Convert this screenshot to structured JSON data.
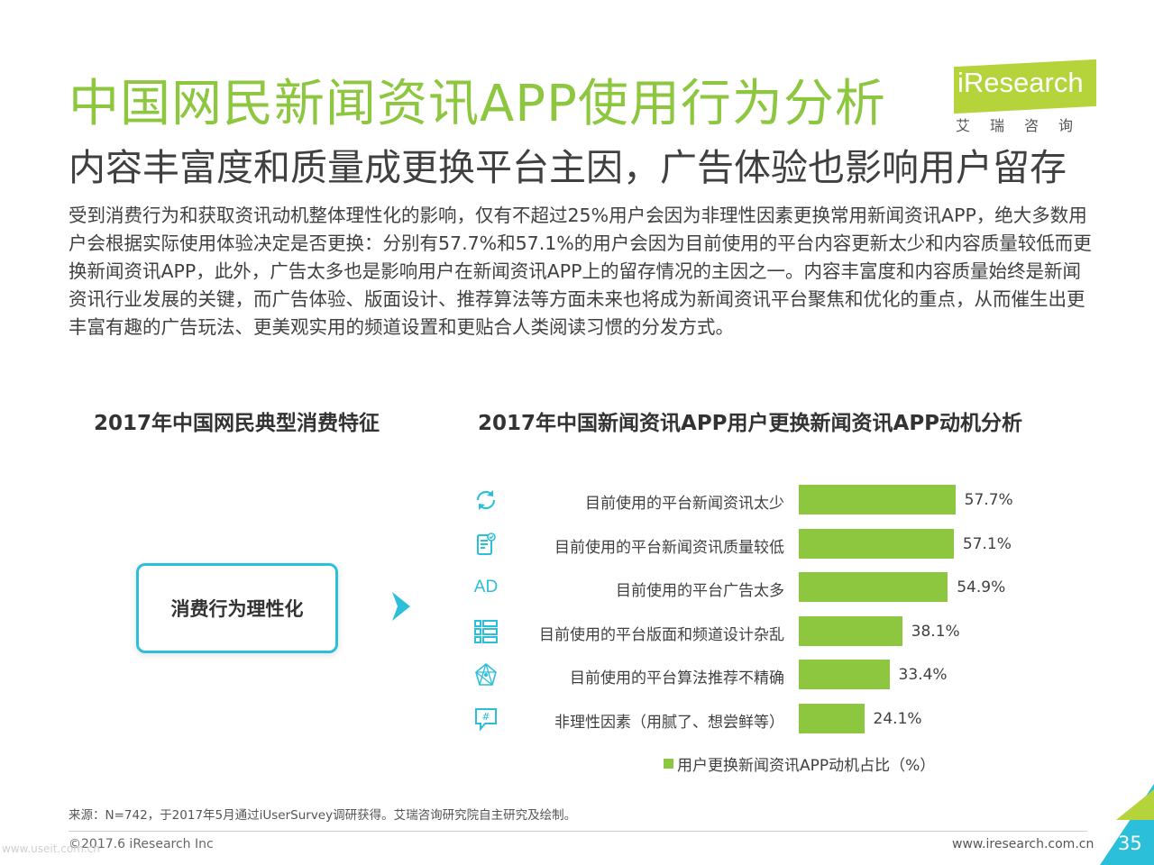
{
  "header": {
    "title": "中国网民新闻资讯APP使用行为分析",
    "subtitle": "内容丰富度和质量成更换平台主因，广告体验也影响用户留存"
  },
  "logo": {
    "text": "iResearch",
    "cn": "艾瑞咨询"
  },
  "intro": "受到消费行为和获取资讯动机整体理性化的影响，仅有不超过25%用户会因为非理性因素更换常用新闻资讯APP，绝大多数用户会根据实际使用体验决定是否更换：分别有57.7%和57.1%的用户会因为目前使用的平台内容更新太少和内容质量较低而更换新闻资讯APP，此外，广告太多也是影响用户在新闻资讯APP上的留存情况的主因之一。内容丰富度和内容质量始终是新闻资讯行业发展的关键，而广告体验、版面设计、推荐算法等方面未来也将成为新闻资讯平台聚焦和优化的重点，从而催生出更丰富有趣的广告玩法、更美观实用的频道设置和更贴合人类阅读习惯的分发方式。",
  "left_panel": {
    "heading": "2017年中国网民典型消费特征",
    "feature": "消费行为理性化"
  },
  "chart_data": {
    "type": "bar",
    "orientation": "horizontal",
    "title": "2017年中国新闻资讯APP用户更换新闻资讯APP动机分析",
    "categories": [
      "目前使用的平台新闻资讯太少",
      "目前使用的平台新闻资讯质量较低",
      "目前使用的平台广告太多",
      "目前使用的平台版面和频道设计杂乱",
      "目前使用的平台算法推荐不精确",
      "非理性因素（用腻了、想尝鲜等）"
    ],
    "series": [
      {
        "name": "用户更换新闻资讯APP动机占比（%）",
        "values": [
          57.7,
          57.1,
          54.9,
          38.1,
          33.4,
          24.1
        ],
        "labels": [
          "57.7%",
          "57.1%",
          "54.9%",
          "38.1%",
          "33.4%",
          "24.1%"
        ]
      }
    ],
    "icons": [
      "refresh-icon",
      "document-check-icon",
      "ad-icon",
      "list-layout-icon",
      "network-icon",
      "hashtag-chat-icon"
    ],
    "ad_icon_text": "AD",
    "xlim": [
      0,
      100
    ],
    "legend": "bottom",
    "grid": false,
    "bar_color": "#8dc63f"
  },
  "footer": {
    "source": "来源：N=742，于2017年5月通过iUserSurvey调研获得。艾瑞咨询研究院自主研究及绘制。",
    "copyright": "©2017.6 iResearch Inc",
    "url": "www.iresearch.com.cn",
    "page": "35",
    "watermark": "www.useit.com.cn"
  },
  "colors": {
    "accent": "#8dc63f",
    "teal": "#2bbfd9",
    "logo": "#b5d33b"
  }
}
